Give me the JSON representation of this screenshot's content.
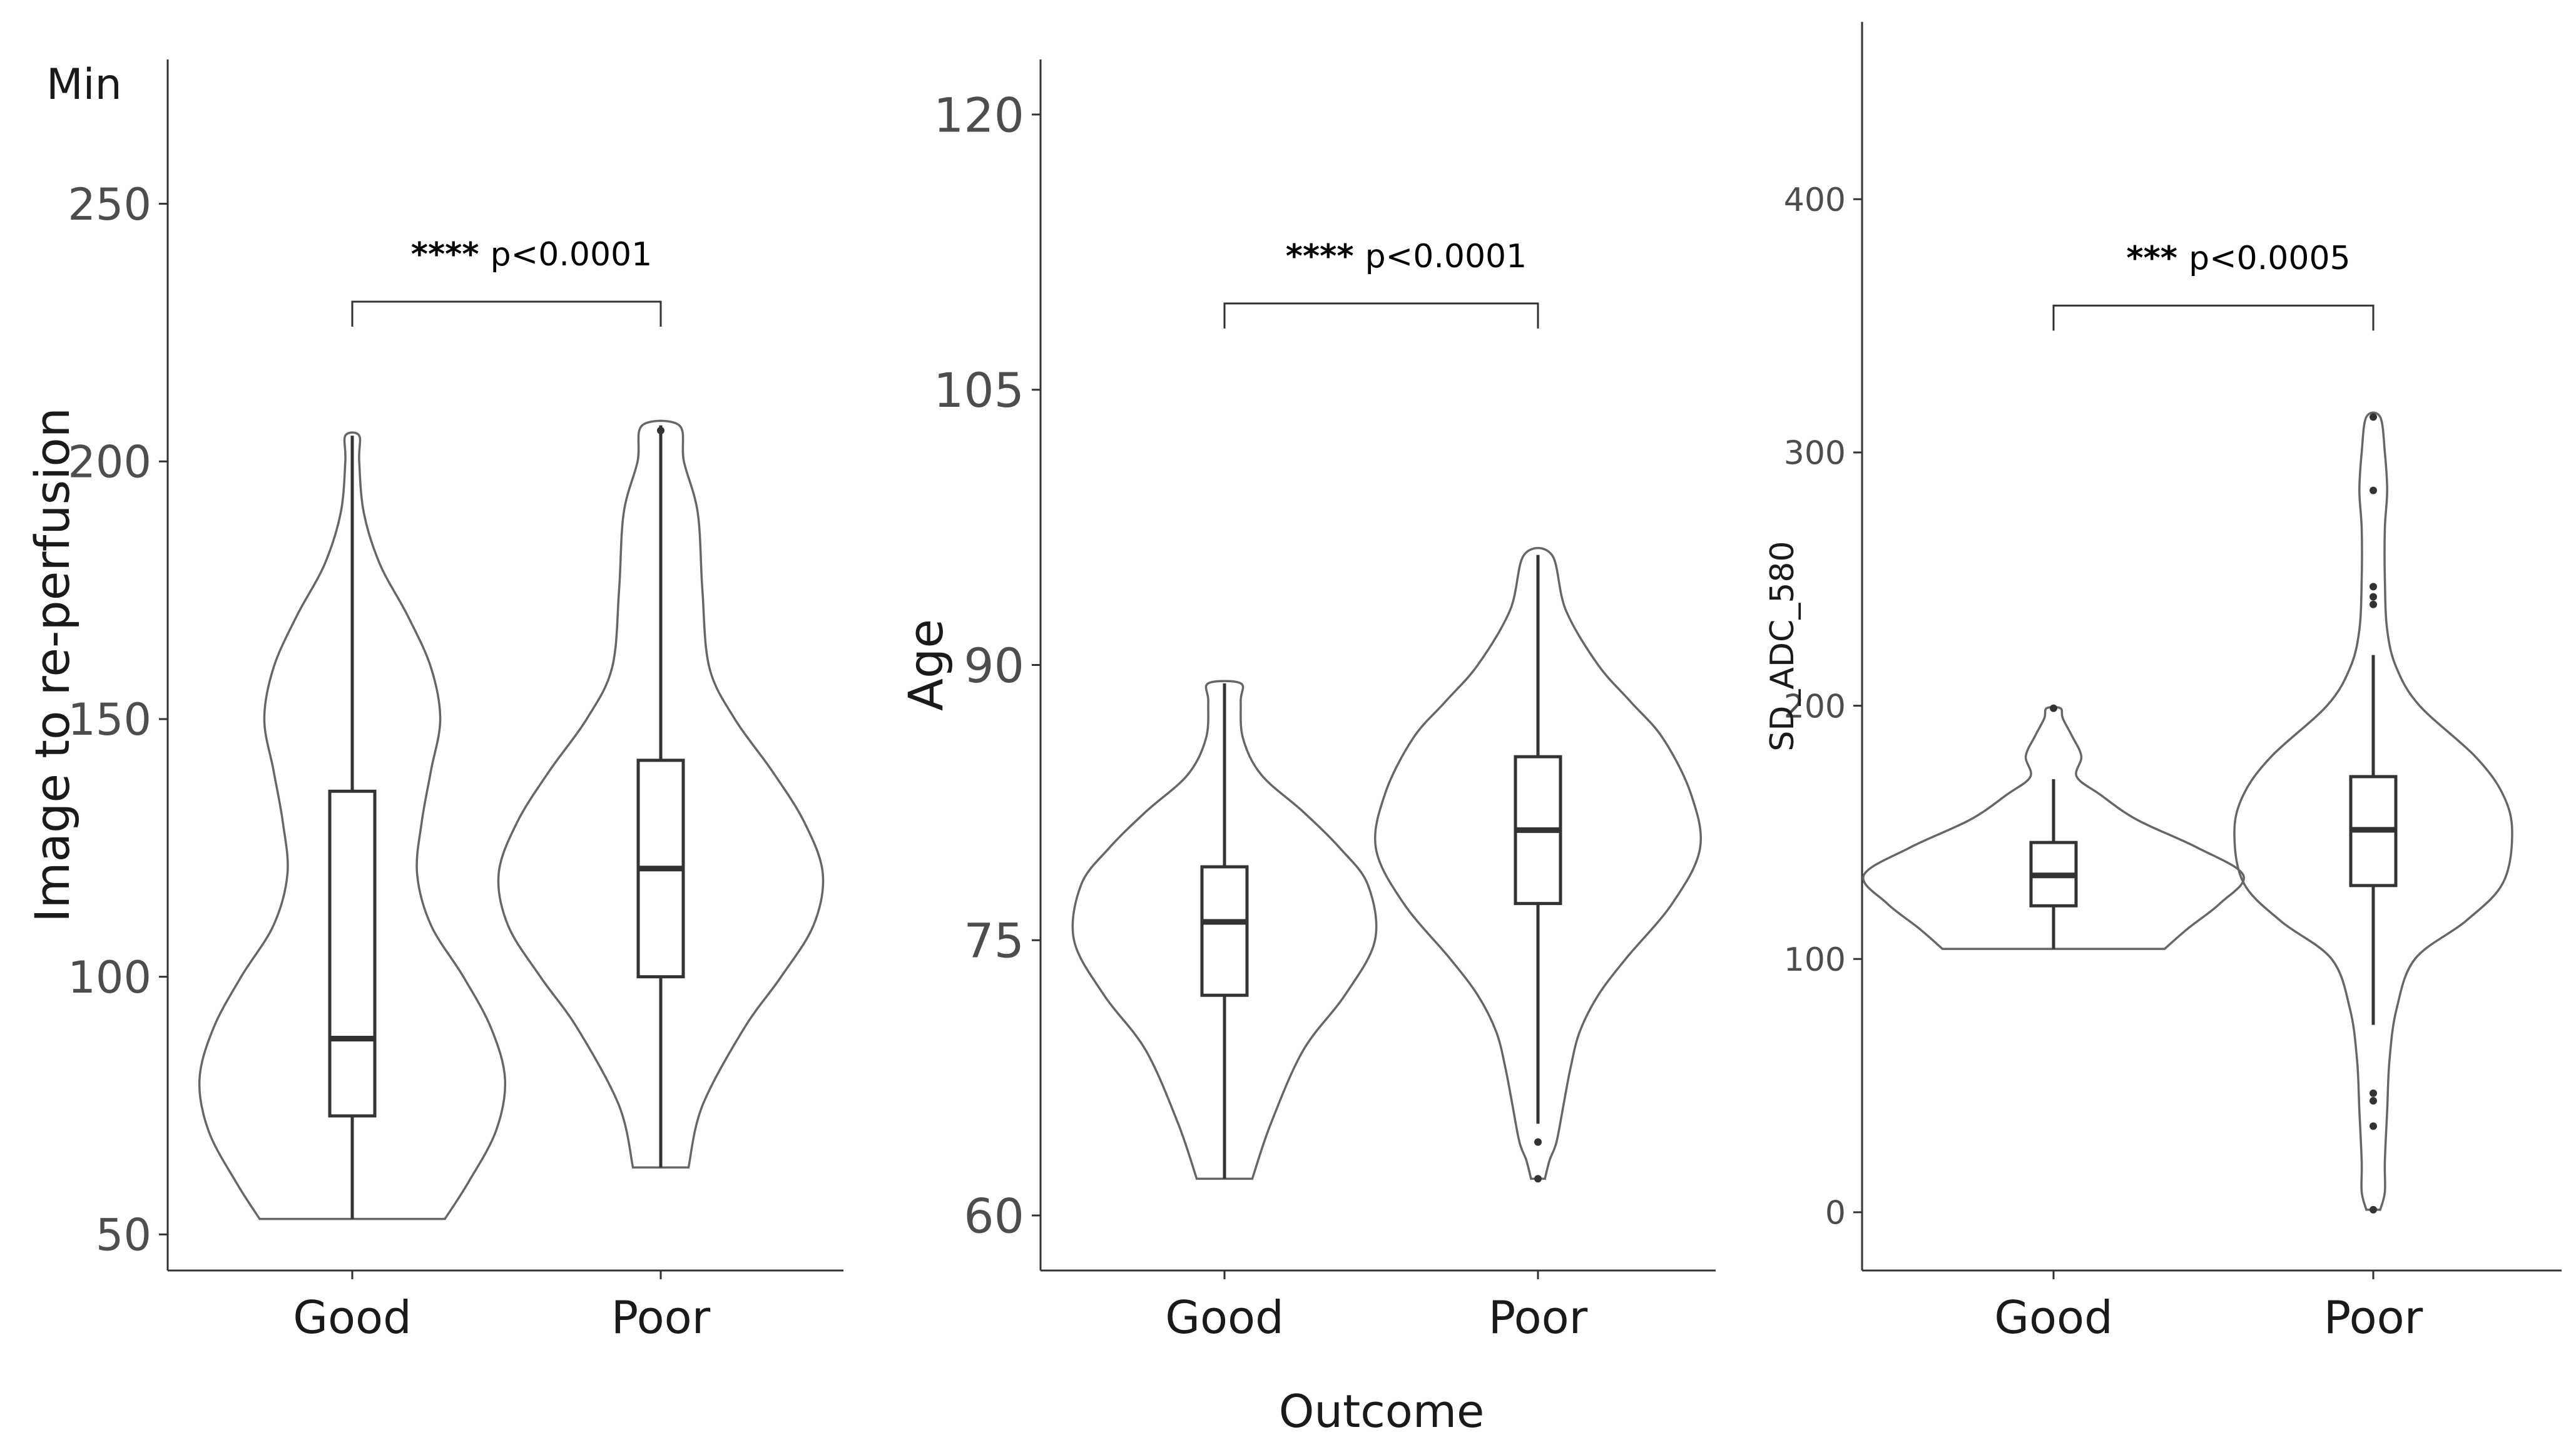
{
  "xlabel_shared": "Outcome",
  "chart_data": [
    {
      "type": "violin",
      "ylabel": "Image to re-perfusion",
      "unit_label": "Min",
      "ylim": [
        43,
        278
      ],
      "yticks": [
        50,
        100,
        150,
        200,
        250
      ],
      "categories": [
        "Good",
        "Poor"
      ],
      "groups": [
        {
          "name": "Good",
          "box": {
            "whisker_low": 53,
            "q1": 73,
            "median": 88,
            "q3": 136,
            "whisker_high": 205
          },
          "outliers": [],
          "density_profile": [
            [
              53,
              0.4
            ],
            [
              60,
              0.5
            ],
            [
              70,
              0.62
            ],
            [
              80,
              0.66
            ],
            [
              90,
              0.6
            ],
            [
              100,
              0.48
            ],
            [
              110,
              0.34
            ],
            [
              120,
              0.28
            ],
            [
              130,
              0.3
            ],
            [
              140,
              0.34
            ],
            [
              150,
              0.38
            ],
            [
              160,
              0.34
            ],
            [
              170,
              0.24
            ],
            [
              180,
              0.12
            ],
            [
              190,
              0.05
            ],
            [
              200,
              0.03
            ],
            [
              205,
              0.03
            ]
          ]
        },
        {
          "name": "Poor",
          "box": {
            "whisker_low": 63,
            "q1": 100,
            "median": 121,
            "q3": 142,
            "whisker_high": 207
          },
          "outliers": [
            206
          ],
          "density_profile": [
            [
              63,
              0.12
            ],
            [
              75,
              0.18
            ],
            [
              90,
              0.36
            ],
            [
              100,
              0.52
            ],
            [
              110,
              0.66
            ],
            [
              120,
              0.7
            ],
            [
              130,
              0.62
            ],
            [
              140,
              0.48
            ],
            [
              150,
              0.32
            ],
            [
              160,
              0.21
            ],
            [
              175,
              0.18
            ],
            [
              190,
              0.16
            ],
            [
              200,
              0.1
            ],
            [
              207,
              0.08
            ]
          ]
        }
      ],
      "significance": {
        "stars": "****",
        "text": "p<0.0001",
        "y": 231
      }
    },
    {
      "type": "violin",
      "ylabel": "Age",
      "ylim": [
        57,
        123
      ],
      "yticks": [
        60,
        75,
        90,
        105,
        120
      ],
      "categories": [
        "Good",
        "Poor"
      ],
      "groups": [
        {
          "name": "Good",
          "box": {
            "whisker_low": 62,
            "q1": 72,
            "median": 76,
            "q3": 79,
            "whisker_high": 89
          },
          "outliers": [],
          "density_profile": [
            [
              62,
              0.12
            ],
            [
              65,
              0.2
            ],
            [
              69,
              0.34
            ],
            [
              72,
              0.52
            ],
            [
              75,
              0.65
            ],
            [
              78,
              0.62
            ],
            [
              80,
              0.5
            ],
            [
              82,
              0.34
            ],
            [
              84,
              0.16
            ],
            [
              86,
              0.08
            ],
            [
              88,
              0.07
            ],
            [
              89,
              0.07
            ]
          ]
        },
        {
          "name": "Poor",
          "box": {
            "whisker_low": 65,
            "q1": 77,
            "median": 81,
            "q3": 85,
            "whisker_high": 96
          },
          "outliers": [
            64,
            62
          ],
          "density_profile": [
            [
              62,
              0.03
            ],
            [
              63,
              0.05
            ],
            [
              64,
              0.08
            ],
            [
              66,
              0.11
            ],
            [
              68,
              0.14
            ],
            [
              70,
              0.18
            ],
            [
              72,
              0.26
            ],
            [
              74,
              0.38
            ],
            [
              77,
              0.58
            ],
            [
              80,
              0.7
            ],
            [
              83,
              0.66
            ],
            [
              86,
              0.54
            ],
            [
              88,
              0.4
            ],
            [
              90,
              0.26
            ],
            [
              93,
              0.12
            ],
            [
              96,
              0.06
            ]
          ]
        }
      ],
      "significance": {
        "stars": "****",
        "text": "p<0.0001",
        "y": 109.7
      }
    },
    {
      "type": "violin",
      "ylabel": "SD_ADC_580",
      "ylim": [
        -23,
        470
      ],
      "yticks": [
        0,
        100,
        200,
        300,
        400
      ],
      "categories": [
        "Good",
        "Poor"
      ],
      "groups": [
        {
          "name": "Good",
          "box": {
            "whisker_low": 104,
            "q1": 121,
            "median": 133,
            "q3": 146,
            "whisker_high": 171
          },
          "outliers": [
            199
          ],
          "density_profile": [
            [
              104,
              0.48
            ],
            [
              112,
              0.58
            ],
            [
              122,
              0.72
            ],
            [
              133,
              0.82
            ],
            [
              144,
              0.62
            ],
            [
              155,
              0.36
            ],
            [
              165,
              0.2
            ],
            [
              172,
              0.1
            ],
            [
              180,
              0.12
            ],
            [
              188,
              0.08
            ],
            [
              195,
              0.04
            ],
            [
              199,
              0.03
            ]
          ]
        },
        {
          "name": "Poor",
          "box": {
            "whisker_low": 74,
            "q1": 129,
            "median": 151,
            "q3": 172,
            "whisker_high": 220
          },
          "outliers": [
            314,
            285,
            247,
            243,
            240,
            47,
            44,
            34,
            1
          ],
          "density_profile": [
            [
              1,
              0.03
            ],
            [
              8,
              0.05
            ],
            [
              20,
              0.05
            ],
            [
              40,
              0.06
            ],
            [
              60,
              0.07
            ],
            [
              80,
              0.1
            ],
            [
              100,
              0.18
            ],
            [
              115,
              0.4
            ],
            [
              130,
              0.56
            ],
            [
              150,
              0.6
            ],
            [
              165,
              0.56
            ],
            [
              180,
              0.44
            ],
            [
              200,
              0.2
            ],
            [
              215,
              0.1
            ],
            [
              230,
              0.06
            ],
            [
              250,
              0.05
            ],
            [
              270,
              0.05
            ],
            [
              285,
              0.06
            ],
            [
              300,
              0.05
            ],
            [
              314,
              0.03
            ]
          ]
        }
      ],
      "significance": {
        "stars": "***",
        "text": "p<0.0005",
        "y": 358
      }
    }
  ]
}
